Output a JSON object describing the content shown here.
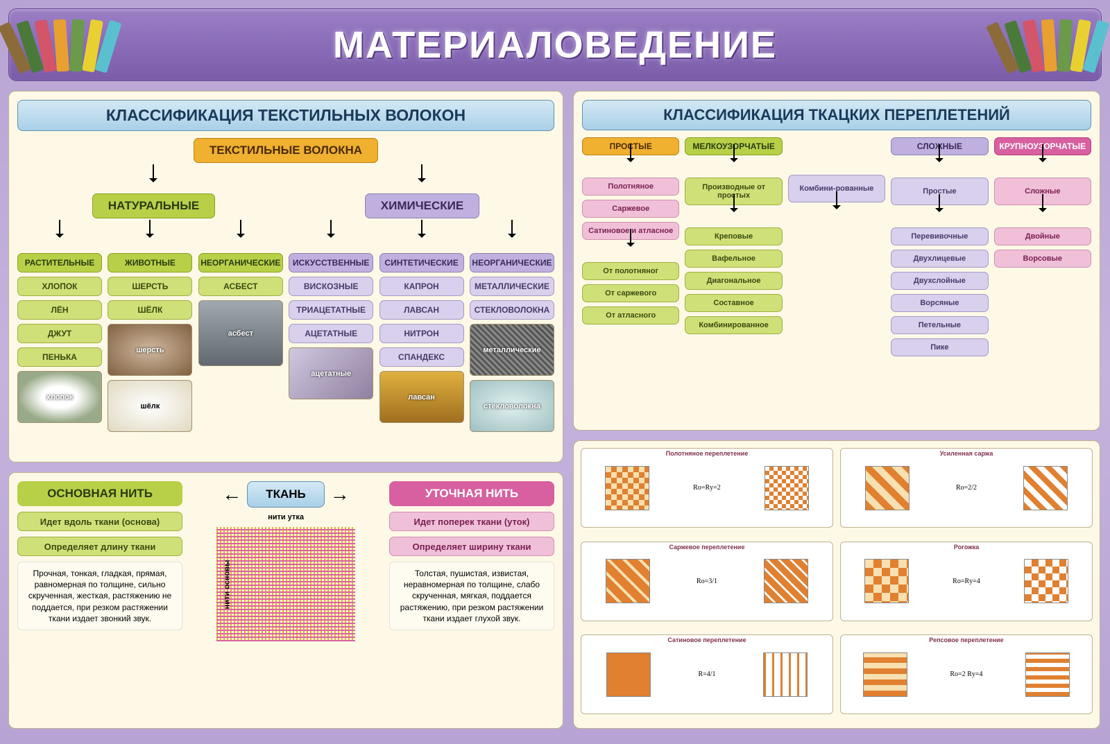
{
  "title": "МАТЕРИАЛОВЕДЕНИЕ",
  "palette": {
    "bg_gradient": [
      "#b8a4d4",
      "#c5b3dd"
    ],
    "panel_bg": "#fef9e7",
    "header_blue": [
      "#d4e8f4",
      "#a8d0e8"
    ],
    "orange": "#f0b030",
    "green": "#b8d048",
    "green_lt": "#d0e078",
    "purple": "#c0b0e0",
    "purple_lt": "#d8d0ec",
    "pink": "#d860a0",
    "pink_lt": "#f0c0d8"
  },
  "fibers": {
    "header": "КЛАССИФИКАЦИЯ ТЕКСТИЛЬНЫХ ВОЛОКОН",
    "root": "ТЕКСТИЛЬНЫЕ ВОЛОКНА",
    "natural": {
      "label": "НАТУРАЛЬНЫЕ",
      "plant": {
        "label": "РАСТИТЕЛЬНЫЕ",
        "items": [
          "ХЛОПОК",
          "ЛЁН",
          "ДЖУТ",
          "ПЕНЬКА"
        ],
        "img": "хлопок"
      },
      "animal": {
        "label": "ЖИВОТНЫЕ",
        "items": [
          "ШЕРСТЬ",
          "ШЁЛК"
        ],
        "img1": "шерсть",
        "img2": "шёлк"
      },
      "inorg": {
        "label": "НЕОРГАНИЧЕСКИЕ",
        "items": [
          "АСБЕСТ"
        ],
        "img": "асбест"
      }
    },
    "chemical": {
      "label": "ХИМИЧЕСКИЕ",
      "artificial": {
        "label": "ИСКУССТВЕННЫЕ",
        "items": [
          "ВИСКОЗНЫЕ",
          "ТРИАЦЕТАТНЫЕ",
          "АЦЕТАТНЫЕ"
        ],
        "img": "ацетатные"
      },
      "synthetic": {
        "label": "СИНТЕТИЧЕСКИЕ",
        "items": [
          "КАПРОН",
          "ЛАВСАН",
          "НИТРОН",
          "СПАНДЕКС"
        ],
        "img": "лавсан"
      },
      "inorg": {
        "label": "НЕОРГАНИЧЕСКИЕ",
        "items": [
          "МЕТАЛЛИЧЕСКИЕ",
          "СТЕКЛОВОЛОКНА"
        ],
        "img1": "металлические",
        "img2": "стекловолокна"
      }
    }
  },
  "fabric": {
    "center": "ТКАНЬ",
    "warp": {
      "title": "ОСНОВНАЯ НИТЬ",
      "items": [
        "Идет вдоль ткани (основа)",
        "Определяет длину ткани"
      ],
      "desc": "Прочная, тонкая, гладкая, прямая, равномерная по толщине, сильно скрученная, жесткая, растяжению не поддается, при резком растяжении ткани издает звонкий звук."
    },
    "weft": {
      "title": "УТОЧНАЯ НИТЬ",
      "items": [
        "Идет поперек ткани (уток)",
        "Определяет ширину ткани"
      ],
      "desc": "Толстая, пушистая, извистая, неравномерная по толщине, слабо скрученная, мягкая, поддается растяжению, при резком растяжении ткани издает глухой звук."
    },
    "diagram": {
      "top": "нити утка",
      "left": "нити основы"
    }
  },
  "weaves": {
    "header": "КЛАССИФИКАЦИЯ ТКАЦКИХ ПЕРЕПЛЕТЕНИЙ",
    "cols": [
      {
        "head": "ПРОСТЫЕ",
        "head_class": "pill-orange",
        "sub": null,
        "items": [
          "Полотняное",
          "Саржевое",
          "Сатиновое и атласное"
        ],
        "item_class": "pill-pink-lt",
        "sub2_head": null,
        "sub2": [
          "От полотняног",
          "От саржевого",
          "От атласного"
        ],
        "sub2_class": "pill-green-lt"
      },
      {
        "head": "МЕЛКОУЗОРЧАТЫЕ",
        "head_class": "pill-green",
        "sub": "Производные от простых",
        "sub_class": "pill-green-lt",
        "items": [
          "Креповые",
          "Вафельное",
          "Диагональное",
          "Составное",
          "Комбинированное"
        ],
        "item_class": "pill-green-lt",
        "sub2": null
      },
      {
        "head": "",
        "head_class": "",
        "sub": "Комбини-рованные",
        "sub_class": "pill-purple-lt",
        "items": [],
        "item_class": "",
        "sub2": null
      },
      {
        "head": "СЛОЖНЫЕ",
        "head_class": "pill-purple",
        "sub": "Простые",
        "sub_class": "pill-purple-lt",
        "items": [
          "Перевивочные",
          "Двухлицевые",
          "Двухслойные",
          "Ворсяные",
          "Петельные",
          "Пике"
        ],
        "item_class": "pill-purple-lt",
        "sub2": null
      },
      {
        "head": "КРУПНОУЗОРЧАТЫЕ",
        "head_class": "pill-pink",
        "sub": "Сложные",
        "sub_class": "pill-pink-lt",
        "items": [
          "Двойные",
          "Ворсовые"
        ],
        "item_class": "pill-pink-lt",
        "sub2": null
      }
    ]
  },
  "patterns": {
    "items": [
      {
        "title": "Полотняное переплетение",
        "formula": "Rо=Rу=2",
        "bg1": "repeating-conic-gradient(#e08030 0 25%,#f8e0b0 0 50%) 0 0/16px 16px",
        "bg2": "repeating-conic-gradient(#e08030 0 25%,#fff 0 50%) 0 0/12px 12px"
      },
      {
        "title": "Усиленная саржа",
        "formula": "Rо=2/2",
        "bg1": "repeating-linear-gradient(45deg,#e08030 0 10px,#f8e0b0 10px 20px)",
        "bg2": "repeating-linear-gradient(45deg,#e08030 0 8px,#fff 8px 16px)"
      },
      {
        "title": "Саржевое переплетение",
        "formula": "Rо=3/1",
        "bg1": "repeating-linear-gradient(45deg,#e08030 0 12px,#f8e0b0 12px 16px)",
        "bg2": "repeating-linear-gradient(45deg,#e08030 0 9px,#fff 9px 12px)"
      },
      {
        "title": "Рогожка",
        "formula": "Rо=Rу=4",
        "bg1": "repeating-conic-gradient(#e08030 0 25%,#f8e0b0 0 50%) 0 0/24px 24px",
        "bg2": "repeating-conic-gradient(#e08030 0 25%,#fff 0 50%) 0 0/20px 20px"
      },
      {
        "title": "Сатиновое переплетение",
        "formula": "R=4/1",
        "bg1": "linear-gradient(#e08030,#e08030)",
        "bg2": "repeating-linear-gradient(90deg,#e08030 0 3px,#fff 3px 12px)"
      },
      {
        "title": "Репсовое переплетение",
        "formula": "Rо=2 Rу=4",
        "bg1": "repeating-linear-gradient(0deg,#e08030 0 8px,#f8e0b0 8px 16px)",
        "bg2": "repeating-linear-gradient(0deg,#e08030 0 6px,#fff 6px 12px)"
      }
    ]
  }
}
